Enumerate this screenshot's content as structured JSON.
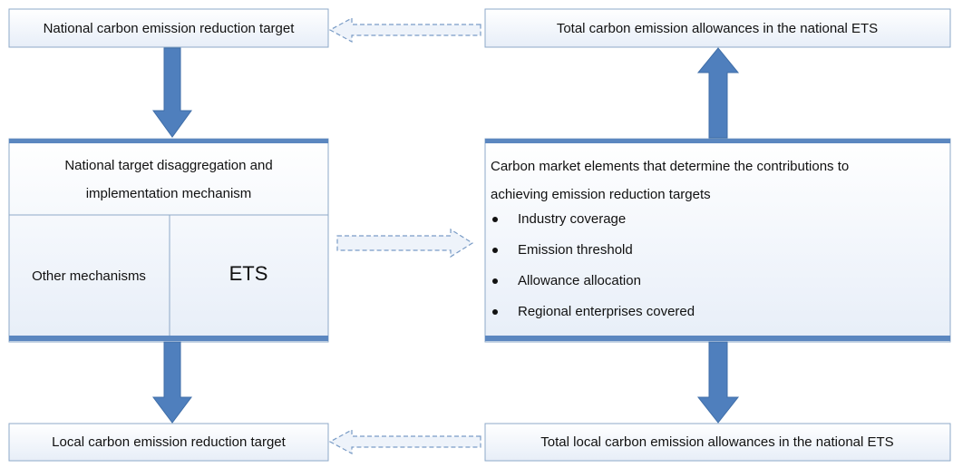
{
  "nodes": [
    {
      "label": "National carbon emission reduction target"
    },
    {
      "label": "Total carbon emission allowances in the national ETS"
    },
    {
      "label": "National target disaggregation and implementation mechanism",
      "parts": [
        "Other mechanisms",
        "ETS"
      ]
    },
    {
      "label": "Carbon market elements that determine the contributions to achieving emission reduction targets",
      "bullets": [
        "Industry coverage",
        "Emission threshold",
        "Allowance allocation",
        "Regional enterprises covered"
      ]
    },
    {
      "label": "Local carbon emission reduction target"
    },
    {
      "label": "Total local carbon emission allowances in the national ETS"
    }
  ]
}
